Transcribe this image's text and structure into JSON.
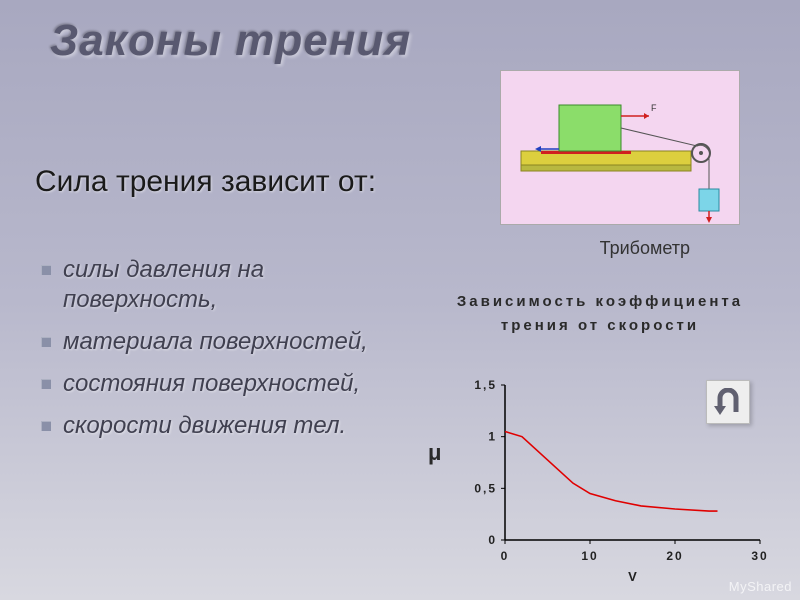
{
  "title": "Законы трения",
  "subtitle": "Сила трения зависит от:",
  "bullets": [
    "силы давления на поверхность,",
    "материала поверхностей,",
    "состояния поверхностей,",
    "скорости движения тел."
  ],
  "tribometer": {
    "caption": "Трибометр",
    "bg_color": "#f4d6f0",
    "table_color": "#dccf3e",
    "block_color": "#8bdd6a",
    "weight_color": "#7cd5e8",
    "pulley_color": "#555"
  },
  "chart": {
    "title_line1": "Зависимость коэффициента",
    "title_line2": "трения от скорости",
    "y_axis_symbol": "μ",
    "x_axis_label": "V",
    "xlim": [
      0,
      30
    ],
    "ylim": [
      0,
      1.5
    ],
    "xticks": [
      0,
      10,
      20,
      30
    ],
    "yticks": [
      "0",
      "0,5",
      "1",
      "1,5"
    ],
    "line_color": "#e00000",
    "axis_color": "#000000",
    "tick_font_size": 12,
    "line_width": 1.6,
    "curve": [
      {
        "x": 0,
        "y": 1.05
      },
      {
        "x": 2,
        "y": 1.0
      },
      {
        "x": 4,
        "y": 0.85
      },
      {
        "x": 6,
        "y": 0.7
      },
      {
        "x": 8,
        "y": 0.55
      },
      {
        "x": 10,
        "y": 0.45
      },
      {
        "x": 13,
        "y": 0.38
      },
      {
        "x": 16,
        "y": 0.33
      },
      {
        "x": 20,
        "y": 0.3
      },
      {
        "x": 24,
        "y": 0.28
      },
      {
        "x": 25,
        "y": 0.28
      }
    ]
  },
  "back_icon_color": "#606070",
  "watermark": "MyShared"
}
